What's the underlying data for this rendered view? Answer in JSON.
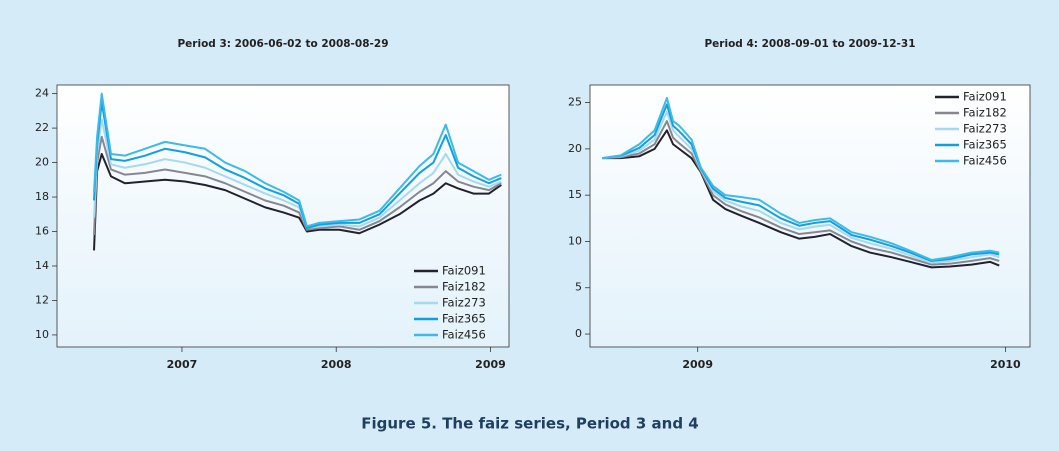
{
  "caption": "Figure 5. The faiz series, Period 3 and 4",
  "chart_data": [
    {
      "type": "line",
      "title": "Period 3: 2006-06-02 to 2008-08-29",
      "x": [
        2006.43,
        2006.45,
        2006.48,
        2006.54,
        2006.63,
        2006.76,
        2006.89,
        2007.02,
        2007.15,
        2007.28,
        2007.41,
        2007.54,
        2007.66,
        2007.76,
        2007.81,
        2007.89,
        2008.02,
        2008.15,
        2008.28,
        2008.41,
        2008.54,
        2008.63,
        2008.71,
        2008.79,
        2008.89,
        2008.99,
        2009.07
      ],
      "series": [
        {
          "name": "Faiz091",
          "color": "#22222e",
          "values": [
            14.9,
            19.5,
            20.5,
            19.2,
            18.8,
            18.9,
            19.0,
            18.9,
            18.7,
            18.4,
            17.9,
            17.4,
            17.1,
            16.8,
            16.0,
            16.1,
            16.1,
            15.9,
            16.4,
            17.0,
            17.8,
            18.2,
            18.8,
            18.5,
            18.2,
            18.2,
            18.7
          ]
        },
        {
          "name": "Faiz182",
          "color": "#86878f",
          "values": [
            15.8,
            20.0,
            21.5,
            19.6,
            19.3,
            19.4,
            19.6,
            19.4,
            19.2,
            18.8,
            18.3,
            17.8,
            17.5,
            17.1,
            16.1,
            16.2,
            16.3,
            16.1,
            16.6,
            17.4,
            18.3,
            18.8,
            19.5,
            18.9,
            18.6,
            18.4,
            18.8
          ]
        },
        {
          "name": "Faiz273",
          "color": "#a6d8ef",
          "values": [
            16.8,
            20.5,
            22.5,
            19.9,
            19.7,
            19.9,
            20.2,
            20.0,
            19.7,
            19.2,
            18.7,
            18.2,
            17.8,
            17.4,
            16.2,
            16.3,
            16.4,
            16.3,
            16.8,
            17.8,
            18.8,
            19.4,
            20.5,
            19.3,
            18.9,
            18.6,
            18.9
          ]
        },
        {
          "name": "Faiz365",
          "color": "#129fe0",
          "values": [
            17.8,
            21.0,
            23.5,
            20.2,
            20.1,
            20.4,
            20.8,
            20.6,
            20.3,
            19.6,
            19.1,
            18.5,
            18.1,
            17.6,
            16.2,
            16.4,
            16.5,
            16.5,
            17.0,
            18.2,
            19.4,
            20.0,
            21.6,
            19.7,
            19.2,
            18.8,
            19.1
          ]
        },
        {
          "name": "Faiz456",
          "color": "#3cbae8",
          "values": [
            18.3,
            21.5,
            24.0,
            20.5,
            20.4,
            20.8,
            21.2,
            21.0,
            20.8,
            20.0,
            19.5,
            18.8,
            18.3,
            17.8,
            16.3,
            16.5,
            16.6,
            16.7,
            17.2,
            18.5,
            19.8,
            20.5,
            22.2,
            20.0,
            19.5,
            19.0,
            19.3
          ]
        }
      ],
      "xlim": [
        2006.19,
        2009.12
      ],
      "xticks": [
        2007,
        2008,
        2009
      ],
      "ylim": [
        9.3,
        24.5
      ],
      "yticks": [
        10,
        12,
        14,
        16,
        18,
        20,
        22,
        24
      ],
      "legend": "lower right"
    },
    {
      "type": "line",
      "title": "Period 4: 2008-09-01 to 2009-12-31",
      "x": [
        2008.69,
        2008.75,
        2008.81,
        2008.86,
        2008.9,
        2008.92,
        2008.94,
        2008.98,
        2009.01,
        2009.05,
        2009.09,
        2009.14,
        2009.2,
        2009.27,
        2009.33,
        2009.38,
        2009.43,
        2009.5,
        2009.56,
        2009.63,
        2009.69,
        2009.76,
        2009.82,
        2009.89,
        2009.95,
        2009.98
      ],
      "series": [
        {
          "name": "Faiz091",
          "color": "#22222e",
          "values": [
            19,
            19,
            19.2,
            20,
            22,
            20.5,
            20,
            19,
            17.5,
            14.5,
            13.5,
            12.8,
            12,
            11,
            10.3,
            10.5,
            10.8,
            9.5,
            8.8,
            8.3,
            7.8,
            7.2,
            7.3,
            7.5,
            7.8,
            7.4
          ]
        },
        {
          "name": "Faiz182",
          "color": "#86878f",
          "values": [
            19,
            19.1,
            19.5,
            20.5,
            23,
            21.2,
            20.6,
            19.5,
            17.6,
            15,
            14,
            13.3,
            12.6,
            11.5,
            10.8,
            11,
            11.2,
            10,
            9.3,
            8.8,
            8.2,
            7.5,
            7.6,
            7.9,
            8.2,
            7.9
          ]
        },
        {
          "name": "Faiz273",
          "color": "#a6d8ef",
          "values": [
            19,
            19.2,
            19.8,
            21,
            24,
            22,
            21.3,
            20,
            17.8,
            15.4,
            14.4,
            13.8,
            13.3,
            12,
            11.3,
            11.6,
            11.8,
            10.4,
            9.8,
            9.2,
            8.5,
            7.7,
            7.9,
            8.3,
            8.6,
            8.3
          ]
        },
        {
          "name": "Faiz365",
          "color": "#129fe0",
          "values": [
            19,
            19.25,
            20.1,
            21.5,
            24.8,
            22.5,
            21.9,
            20.5,
            17.9,
            15.7,
            14.7,
            14.3,
            13.9,
            12.5,
            11.7,
            12,
            12.2,
            10.7,
            10.2,
            9.5,
            8.8,
            7.9,
            8.1,
            8.6,
            8.8,
            8.6
          ]
        },
        {
          "name": "Faiz456",
          "color": "#3cbae8",
          "values": [
            19,
            19.3,
            20.5,
            22,
            25.5,
            23,
            22.5,
            21,
            18,
            16,
            15,
            14.8,
            14.5,
            13,
            12,
            12.3,
            12.5,
            11,
            10.5,
            9.8,
            9,
            8,
            8.3,
            8.8,
            9,
            8.8
          ]
        }
      ],
      "xlim": [
        2008.65,
        2010.08
      ],
      "xticks": [
        2009,
        2010
      ],
      "ylim": [
        -1.4,
        26.9
      ],
      "yticks": [
        0,
        5,
        10,
        15,
        20,
        25
      ],
      "legend": "upper right"
    }
  ]
}
